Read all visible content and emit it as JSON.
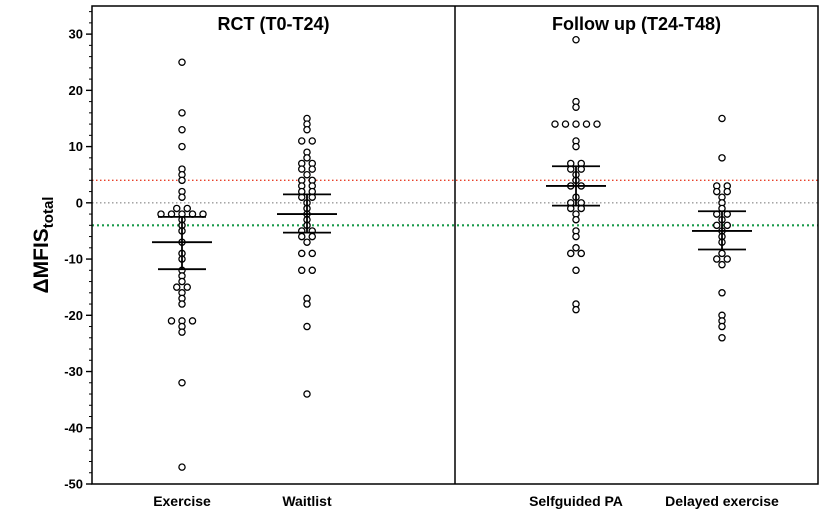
{
  "chart_data": {
    "type": "scatter",
    "ylabel": "ΔMFIS",
    "ylabel_subscript": "total",
    "ylim": [
      -50,
      35
    ],
    "yticks": [
      -50,
      -40,
      -30,
      -20,
      -10,
      0,
      10,
      20,
      30
    ],
    "grid": false,
    "reference_lines": [
      {
        "y": 4,
        "color": "#e8402a",
        "style": "dotted"
      },
      {
        "y": 0,
        "color": "#9a9a9a",
        "style": "dotted"
      },
      {
        "y": -4,
        "color": "#1a9a4a",
        "style": "dotted"
      }
    ],
    "panels": [
      {
        "title": "RCT (T0-T24)",
        "groups": [
          {
            "name": "Exercise",
            "mean": -7,
            "error_bar": [
              -11.8,
              -2.5
            ],
            "values": [
              25,
              16,
              13,
              10,
              6,
              5,
              4,
              2,
              1,
              -1,
              -1,
              -2,
              -2,
              -2,
              -2,
              -2,
              -3,
              -4,
              -5,
              -7,
              -9,
              -10,
              -12,
              -13,
              -14,
              -15,
              -15,
              -16,
              -17,
              -18,
              -21,
              -21,
              -21,
              -22,
              -23,
              -32,
              -47
            ]
          },
          {
            "name": "Waitlist",
            "mean": -2,
            "error_bar": [
              -5.3,
              1.5
            ],
            "values": [
              15,
              14,
              13,
              11,
              11,
              9,
              8,
              7,
              7,
              6,
              6,
              5,
              4,
              4,
              3,
              3,
              2,
              2,
              1,
              1,
              0,
              -1,
              -2,
              -3,
              -4,
              -5,
              -5,
              -6,
              -6,
              -7,
              -9,
              -9,
              -12,
              -12,
              -17,
              -18,
              -22,
              -34
            ]
          }
        ]
      },
      {
        "title": "Follow up (T24-T48)",
        "groups": [
          {
            "name": "Selfguided PA",
            "mean": 3,
            "error_bar": [
              -0.5,
              6.5
            ],
            "values": [
              29,
              18,
              17,
              14,
              14,
              14,
              14,
              14,
              11,
              10,
              7,
              7,
              6,
              6,
              5,
              4,
              3,
              3,
              1,
              0,
              0,
              -1,
              -1,
              -2,
              -3,
              -5,
              -6,
              -8,
              -9,
              -9,
              -12,
              -18,
              -19
            ]
          },
          {
            "name": "Delayed exercise",
            "mean": -5,
            "error_bar": [
              -8.3,
              -1.5
            ],
            "values": [
              15,
              8,
              3,
              3,
              2,
              2,
              1,
              0,
              -1,
              -2,
              -2,
              -3,
              -4,
              -4,
              -5,
              -6,
              -7,
              -9,
              -10,
              -10,
              -11,
              -16,
              -20,
              -21,
              -22,
              -24
            ]
          }
        ]
      }
    ]
  }
}
